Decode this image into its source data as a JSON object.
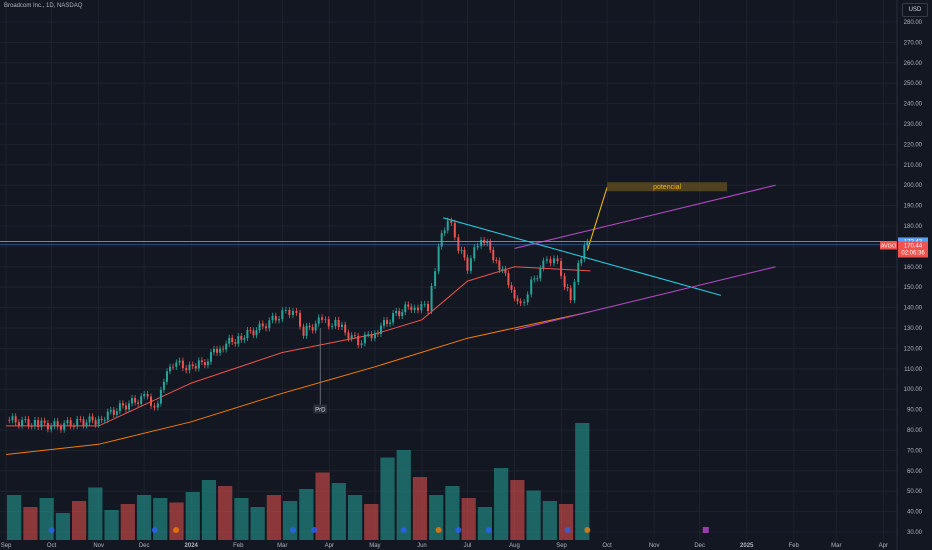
{
  "header": {
    "symbol_title": "Broadcom Inc., 1D, NASDAQ",
    "currency": "USD"
  },
  "colors": {
    "background": "#131722",
    "up": "#26a69a",
    "down": "#ef5350",
    "ma_fast": "#ef5350",
    "ma_slow": "#f57c00",
    "trendline": "#26c6da",
    "channel": "#ab47bc",
    "projection": "#f0b90b"
  },
  "chart_data": {
    "type": "candlestick",
    "y_axis": {
      "min": 30,
      "max": 280,
      "ticks": [
        280,
        270,
        260,
        250,
        240,
        230,
        220,
        210,
        200,
        190,
        180,
        170,
        160,
        150,
        140,
        130,
        120,
        110,
        100,
        90,
        80,
        70,
        60,
        50,
        40,
        30
      ]
    },
    "x_axis": {
      "labels": [
        "Sep",
        "Oct",
        "Nov",
        "Dec",
        "2024",
        "Feb",
        "Mar",
        "Apr",
        "May",
        "Jun",
        "Jul",
        "Aug",
        "Sep",
        "Oct",
        "Nov",
        "Dec",
        "2025",
        "Feb",
        "Mar",
        "Apr"
      ]
    },
    "price_points": [
      [
        "2023-09-01",
        85
      ],
      [
        "2023-09-20",
        83
      ],
      [
        "2023-10-05",
        82
      ],
      [
        "2023-10-20",
        84
      ],
      [
        "2023-11-01",
        85
      ],
      [
        "2023-11-15",
        91
      ],
      [
        "2023-12-01",
        96
      ],
      [
        "2023-12-10",
        91
      ],
      [
        "2023-12-14",
        104
      ],
      [
        "2023-12-20",
        113
      ],
      [
        "2024-01-02",
        110
      ],
      [
        "2024-01-10",
        114
      ],
      [
        "2024-01-20",
        121
      ],
      [
        "2024-02-01",
        125
      ],
      [
        "2024-02-15",
        130
      ],
      [
        "2024-03-01",
        137
      ],
      [
        "2024-03-08",
        139
      ],
      [
        "2024-03-15",
        128
      ],
      [
        "2024-03-25",
        133
      ],
      [
        "2024-04-05",
        132
      ],
      [
        "2024-04-20",
        123
      ],
      [
        "2024-05-01",
        128
      ],
      [
        "2024-05-15",
        137
      ],
      [
        "2024-05-25",
        141
      ],
      [
        "2024-06-05",
        140
      ],
      [
        "2024-06-12",
        170
      ],
      [
        "2024-06-18",
        184
      ],
      [
        "2024-06-25",
        170
      ],
      [
        "2024-07-01",
        160
      ],
      [
        "2024-07-10",
        175
      ],
      [
        "2024-07-20",
        163
      ],
      [
        "2024-07-30",
        150
      ],
      [
        "2024-08-05",
        140
      ],
      [
        "2024-08-12",
        152
      ],
      [
        "2024-08-20",
        161
      ],
      [
        "2024-08-27",
        165
      ],
      [
        "2024-09-03",
        152
      ],
      [
        "2024-09-07",
        143
      ],
      [
        "2024-09-12",
        160
      ],
      [
        "2024-09-18",
        172.43
      ]
    ],
    "moving_averages": [
      {
        "name": "MA fast",
        "color": "#ef5350",
        "points": [
          [
            "2023-09-01",
            82
          ],
          [
            "2023-11-01",
            82
          ],
          [
            "2024-01-01",
            103
          ],
          [
            "2024-03-01",
            118
          ],
          [
            "2024-05-01",
            127
          ],
          [
            "2024-06-01",
            134
          ],
          [
            "2024-07-01",
            153
          ],
          [
            "2024-08-01",
            160
          ],
          [
            "2024-09-20",
            158
          ]
        ]
      },
      {
        "name": "MA slow",
        "color": "#f57c00",
        "points": [
          [
            "2023-09-01",
            68
          ],
          [
            "2023-11-01",
            73
          ],
          [
            "2024-01-01",
            84
          ],
          [
            "2024-03-01",
            98
          ],
          [
            "2024-05-01",
            111
          ],
          [
            "2024-07-01",
            125
          ],
          [
            "2024-08-01",
            130
          ],
          [
            "2024-09-20",
            138
          ]
        ]
      }
    ],
    "volume": {
      "scale_max": 80,
      "values": [
        30,
        22,
        28,
        18,
        26,
        35,
        20,
        24,
        30,
        28,
        25,
        32,
        40,
        36,
        28,
        22,
        30,
        26,
        34,
        45,
        38,
        30,
        24,
        55,
        60,
        42,
        30,
        36,
        28,
        22,
        48,
        40,
        33,
        26,
        24,
        78
      ]
    },
    "drawings": {
      "trendline": [
        [
          "2024-06-15",
          184
        ],
        [
          "2024-12-15",
          146
        ]
      ],
      "channel_upper": [
        [
          "2024-08-01",
          169
        ],
        [
          "2025-01-20",
          200
        ]
      ],
      "channel_lower": [
        [
          "2024-08-01",
          129
        ],
        [
          "2025-01-20",
          160
        ]
      ],
      "projection": [
        [
          "2024-09-18",
          168
        ],
        [
          "2024-10-01",
          199
        ]
      ]
    },
    "annotations": {
      "potencial": "potencial",
      "event_label": "PrD"
    },
    "price_labels": {
      "last_price": "172.43",
      "avgo_label": "AVGO",
      "avgo_price": "170.44",
      "countdown": "02:06:36"
    }
  }
}
